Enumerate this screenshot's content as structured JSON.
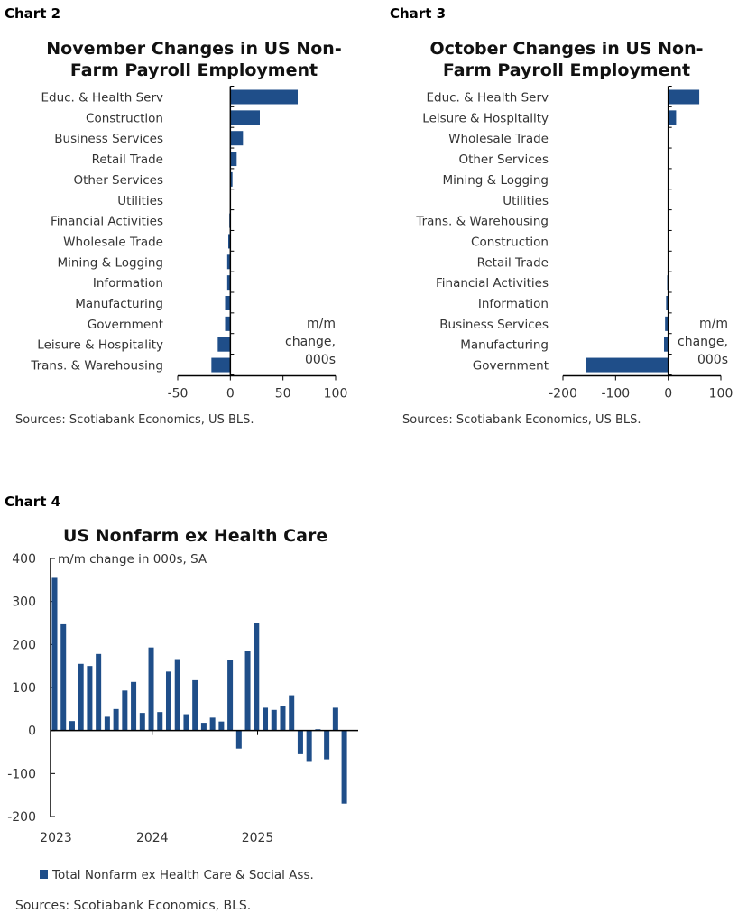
{
  "chart_data": [
    {
      "type": "bar",
      "orientation": "horizontal",
      "label": "Chart 2",
      "title": "November Changes in US Non-Farm Payroll Employment",
      "categories": [
        "Educ. & Health Serv",
        "Construction",
        "Business Services",
        "Retail Trade",
        "Other Services",
        "Utilities",
        "Financial Activities",
        "Wholesale Trade",
        "Mining & Logging",
        "Information",
        "Manufacturing",
        "Government",
        "Leisure & Hospitality",
        "Trans. & Warehousing"
      ],
      "values": [
        64,
        28,
        12,
        6,
        2,
        0,
        -1,
        -2,
        -3,
        -3,
        -5,
        -5,
        -12,
        -18
      ],
      "xlim": [
        -50,
        100
      ],
      "xticks": [
        -50,
        0,
        50,
        100
      ],
      "unit_label": "m/m change, 000s",
      "source": "Sources: Scotiabank Economics, US BLS.",
      "color": "#1f4e89"
    },
    {
      "type": "bar",
      "orientation": "horizontal",
      "label": "Chart 3",
      "title": "October Changes in US Non-Farm Payroll Employment",
      "categories": [
        "Educ. & Health Serv",
        "Leisure & Hospitality",
        "Wholesale Trade",
        "Other Services",
        "Mining & Logging",
        "Utilities",
        "Trans. & Warehousing",
        "Construction",
        "Retail Trade",
        "Financial Activities",
        "Information",
        "Business Services",
        "Manufacturing",
        "Government"
      ],
      "values": [
        59,
        15,
        1,
        1,
        0,
        0,
        0,
        0,
        -1,
        -2,
        -4,
        -6,
        -8,
        -157
      ],
      "xlim": [
        -200,
        100
      ],
      "xticks": [
        -200,
        -100,
        0,
        100
      ],
      "unit_label": "m/m change, 000s",
      "source": "Sources: Scotiabank Economics, US BLS.",
      "color": "#1f4e89"
    },
    {
      "type": "bar",
      "label": "Chart 4",
      "title": "US Nonfarm ex Health Care",
      "ylabel": "m/m change in 000s, SA",
      "x_start": "2023-01",
      "x_end": "2025-10",
      "xticks": [
        "2023",
        "2024",
        "2025"
      ],
      "values": [
        355,
        247,
        22,
        155,
        150,
        178,
        32,
        50,
        93,
        113,
        41,
        193,
        43,
        137,
        166,
        38,
        117,
        18,
        30,
        21,
        164,
        -42,
        185,
        250,
        53,
        48,
        56,
        82,
        -55,
        -73,
        3,
        -67,
        53,
        -170
      ],
      "ylim": [
        -200,
        400
      ],
      "yticks": [
        -200,
        -100,
        0,
        100,
        200,
        300,
        400
      ],
      "legend": "Total Nonfarm ex Health Care & Social Ass.",
      "legend_position": "bottom",
      "source": "Sources: Scotiabank Economics,  BLS.",
      "color": "#1f4e89"
    }
  ]
}
